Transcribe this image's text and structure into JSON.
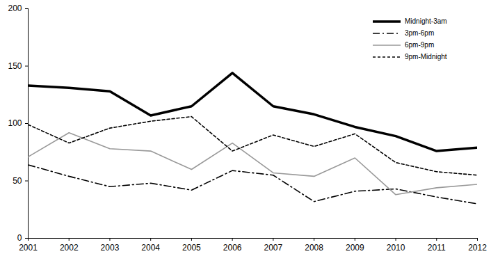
{
  "chart_data": {
    "type": "line",
    "x": [
      2001,
      2002,
      2003,
      2004,
      2005,
      2006,
      2007,
      2008,
      2009,
      2010,
      2011,
      2012
    ],
    "xlim": [
      2001,
      2012
    ],
    "xticks": [
      2001,
      2002,
      2003,
      2004,
      2005,
      2006,
      2007,
      2008,
      2009,
      2010,
      2011,
      2012
    ],
    "ylim": [
      0,
      200
    ],
    "yticks": [
      0,
      50,
      100,
      150,
      200
    ],
    "legend": "top-right",
    "series": [
      {
        "name": "Midnight-3am",
        "color": "#000000",
        "line_style": "solid",
        "values": [
          133,
          131,
          128,
          107,
          115,
          144,
          115,
          108,
          97,
          89,
          76,
          79
        ]
      },
      {
        "name": "3pm-6pm",
        "color": "#000000",
        "line_style": "dashdot",
        "values": [
          64,
          54,
          45,
          48,
          42,
          59,
          55,
          32,
          41,
          43,
          36,
          30
        ]
      },
      {
        "name": "6pm-9pm",
        "color": "#999999",
        "line_style": "solid",
        "values": [
          71,
          92,
          78,
          76,
          60,
          83,
          57,
          54,
          70,
          38,
          44,
          47
        ]
      },
      {
        "name": "9pm-Midnight",
        "color": "#000000",
        "line_style": "dashed",
        "values": [
          99,
          83,
          96,
          102,
          106,
          76,
          90,
          80,
          91,
          66,
          58,
          55
        ]
      }
    ]
  }
}
